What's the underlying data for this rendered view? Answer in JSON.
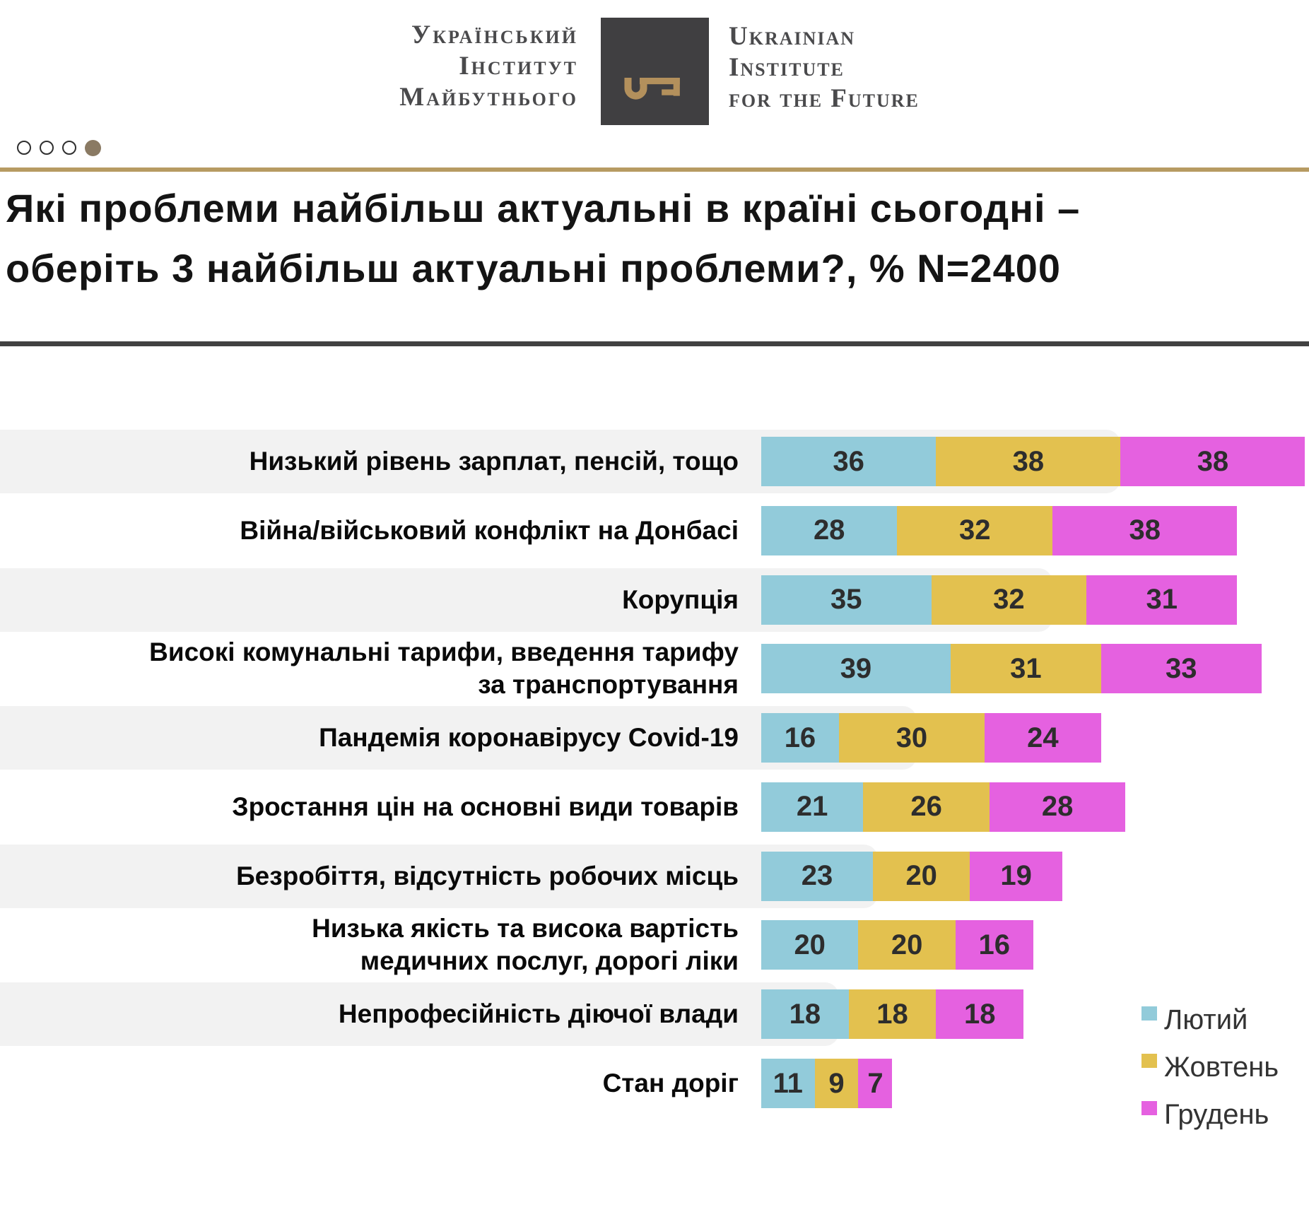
{
  "header": {
    "org_ua_lines": [
      "Український",
      "Інститут",
      "Майбутнього"
    ],
    "org_en_lines": [
      "Ukrainian",
      "Institute",
      "for the Future"
    ],
    "logo_icon": "key-icon",
    "logo_box_color": "#403f41",
    "logo_key_color": "#b3905c"
  },
  "pagination": {
    "total": 4,
    "active_index": 3
  },
  "title": {
    "line1": "Які проблеми найбільш актуальні в країні сьогодні –",
    "line2": "оберіть 3 найбільш актуальні проблеми?, % N=2400"
  },
  "chart_data": {
    "type": "bar",
    "orientation": "horizontal-stacked",
    "unit": "%",
    "sample_note": "N=2400",
    "categories": [
      [
        "Низький рівень зарплат, пенсій, тощо"
      ],
      [
        "Війна/військовий конфлікт на Донбасі"
      ],
      [
        "Корупція"
      ],
      [
        "Високі комунальні тарифи, введення тарифу",
        "за транспортування"
      ],
      [
        "Пандемія коронавірусу Covid-19"
      ],
      [
        "Зростання цін на основні види товарів"
      ],
      [
        "Безробіття, відсутність робочих місць"
      ],
      [
        "Низька якість та висока вартість",
        "медичних послуг, дорогі ліки"
      ],
      [
        "Непрофесійність діючої влади"
      ],
      [
        "Стан доріг"
      ]
    ],
    "series": [
      {
        "name": "Лютий",
        "color": "#92cbda",
        "values": [
          36,
          28,
          35,
          39,
          16,
          21,
          23,
          20,
          18,
          11
        ]
      },
      {
        "name": "Жовтень",
        "color": "#e3c14f",
        "values": [
          38,
          32,
          32,
          31,
          30,
          26,
          20,
          20,
          18,
          9
        ]
      },
      {
        "name": "Грудень",
        "color": "#e561e0",
        "values": [
          38,
          38,
          31,
          33,
          24,
          28,
          19,
          16,
          18,
          7
        ]
      }
    ],
    "value_labels": "inside-center",
    "legend_position": "bottom-right",
    "grid": false,
    "row_band_color": "#f2f2f2"
  },
  "colors": {
    "accent_gold_rule": "#b79b62",
    "dark_rule": "#414141",
    "active_dot": "#8a7a63"
  }
}
